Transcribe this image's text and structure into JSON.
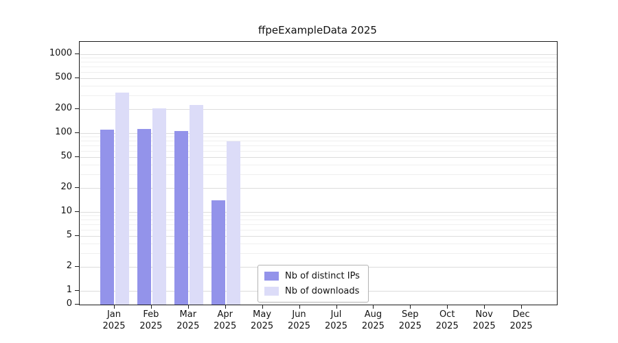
{
  "chart_data": {
    "type": "bar",
    "title": "ffpeExampleData 2025",
    "categories": [
      "Jan",
      "Feb",
      "Mar",
      "Apr",
      "May",
      "Jun",
      "Jul",
      "Aug",
      "Sep",
      "Oct",
      "Nov",
      "Dec"
    ],
    "year": "2025",
    "series": [
      {
        "name": "Nb of distinct IPs",
        "color": "#9393ea",
        "values": [
          110,
          114,
          107,
          14,
          0,
          0,
          0,
          0,
          0,
          0,
          0,
          0
        ]
      },
      {
        "name": "Nb of downloads",
        "color": "#dcdcf8",
        "values": [
          325,
          205,
          228,
          78,
          0,
          0,
          0,
          0,
          0,
          0,
          0,
          0
        ]
      }
    ],
    "yticks": [
      0,
      1,
      2,
      5,
      10,
      20,
      50,
      100,
      200,
      500,
      1000
    ],
    "minor_gridlines": [
      3,
      4,
      6,
      7,
      8,
      9,
      30,
      40,
      60,
      70,
      80,
      90,
      300,
      400,
      600,
      700,
      800,
      900
    ],
    "scale": "symlog",
    "ylim": [
      0,
      1400
    ],
    "grid": true,
    "legend_position": "lower center",
    "xlabel": "",
    "ylabel": ""
  }
}
